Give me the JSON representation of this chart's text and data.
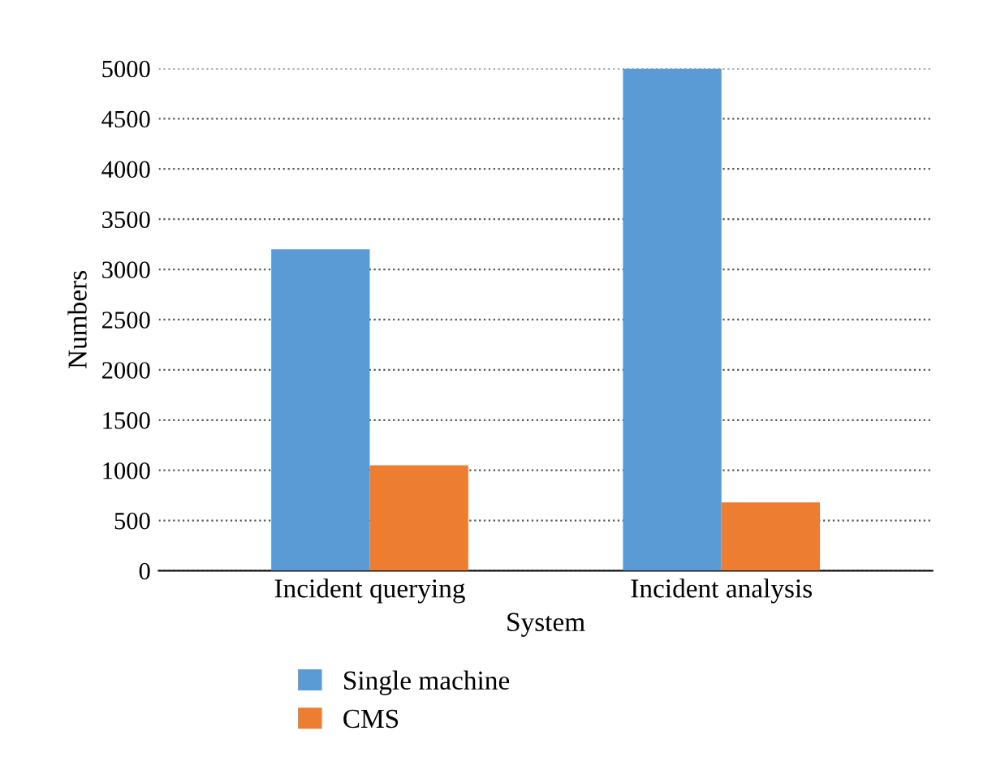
{
  "chart_data": {
    "type": "bar",
    "xlabel": "System",
    "ylabel": "Numbers",
    "categories": [
      "Incident querying",
      "Incident analysis"
    ],
    "series": [
      {
        "name": "Single machine",
        "color": "#5b9bd5",
        "values": [
          3200,
          5000
        ]
      },
      {
        "name": "CMS",
        "color": "#ed7d31",
        "values": [
          1050,
          680
        ]
      }
    ],
    "ylim": [
      0,
      5000
    ],
    "yticks": [
      0,
      500,
      1000,
      1500,
      2000,
      2500,
      3000,
      3500,
      4000,
      4500,
      5000
    ],
    "grid": "y",
    "legend": "bottom"
  }
}
